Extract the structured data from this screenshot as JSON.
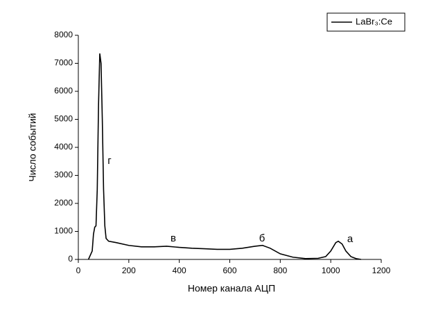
{
  "chart_data": {
    "type": "line",
    "x_label": "Номер канала АЦП",
    "y_label": "Число событий",
    "x": [
      40,
      55,
      60,
      65,
      70,
      75,
      80,
      85,
      90,
      95,
      100,
      105,
      110,
      120,
      150,
      200,
      250,
      300,
      350,
      400,
      450,
      500,
      550,
      600,
      650,
      700,
      730,
      760,
      800,
      850,
      900,
      950,
      980,
      1000,
      1020,
      1030,
      1045,
      1060,
      1080,
      1100,
      1120
    ],
    "series": [
      {
        "name": "LaBr₃:Ce",
        "color": "#000000",
        "values": [
          0,
          300,
          900,
          1150,
          1200,
          2500,
          5500,
          7350,
          7000,
          5000,
          2500,
          1200,
          750,
          650,
          600,
          500,
          450,
          450,
          470,
          430,
          400,
          380,
          360,
          360,
          400,
          470,
          500,
          400,
          200,
          80,
          30,
          40,
          100,
          300,
          600,
          650,
          550,
          300,
          100,
          30,
          0
        ]
      }
    ],
    "annotations": [
      "г",
      "в",
      "б",
      "а"
    ],
    "xlim": [
      0,
      1200
    ],
    "xticks": [
      0,
      200,
      400,
      600,
      800,
      1000,
      1200
    ],
    "ylim": [
      0,
      8000
    ],
    "yticks": [
      0,
      1000,
      2000,
      3000,
      4000,
      5000,
      6000,
      7000,
      8000
    ],
    "legend": "top-right"
  }
}
